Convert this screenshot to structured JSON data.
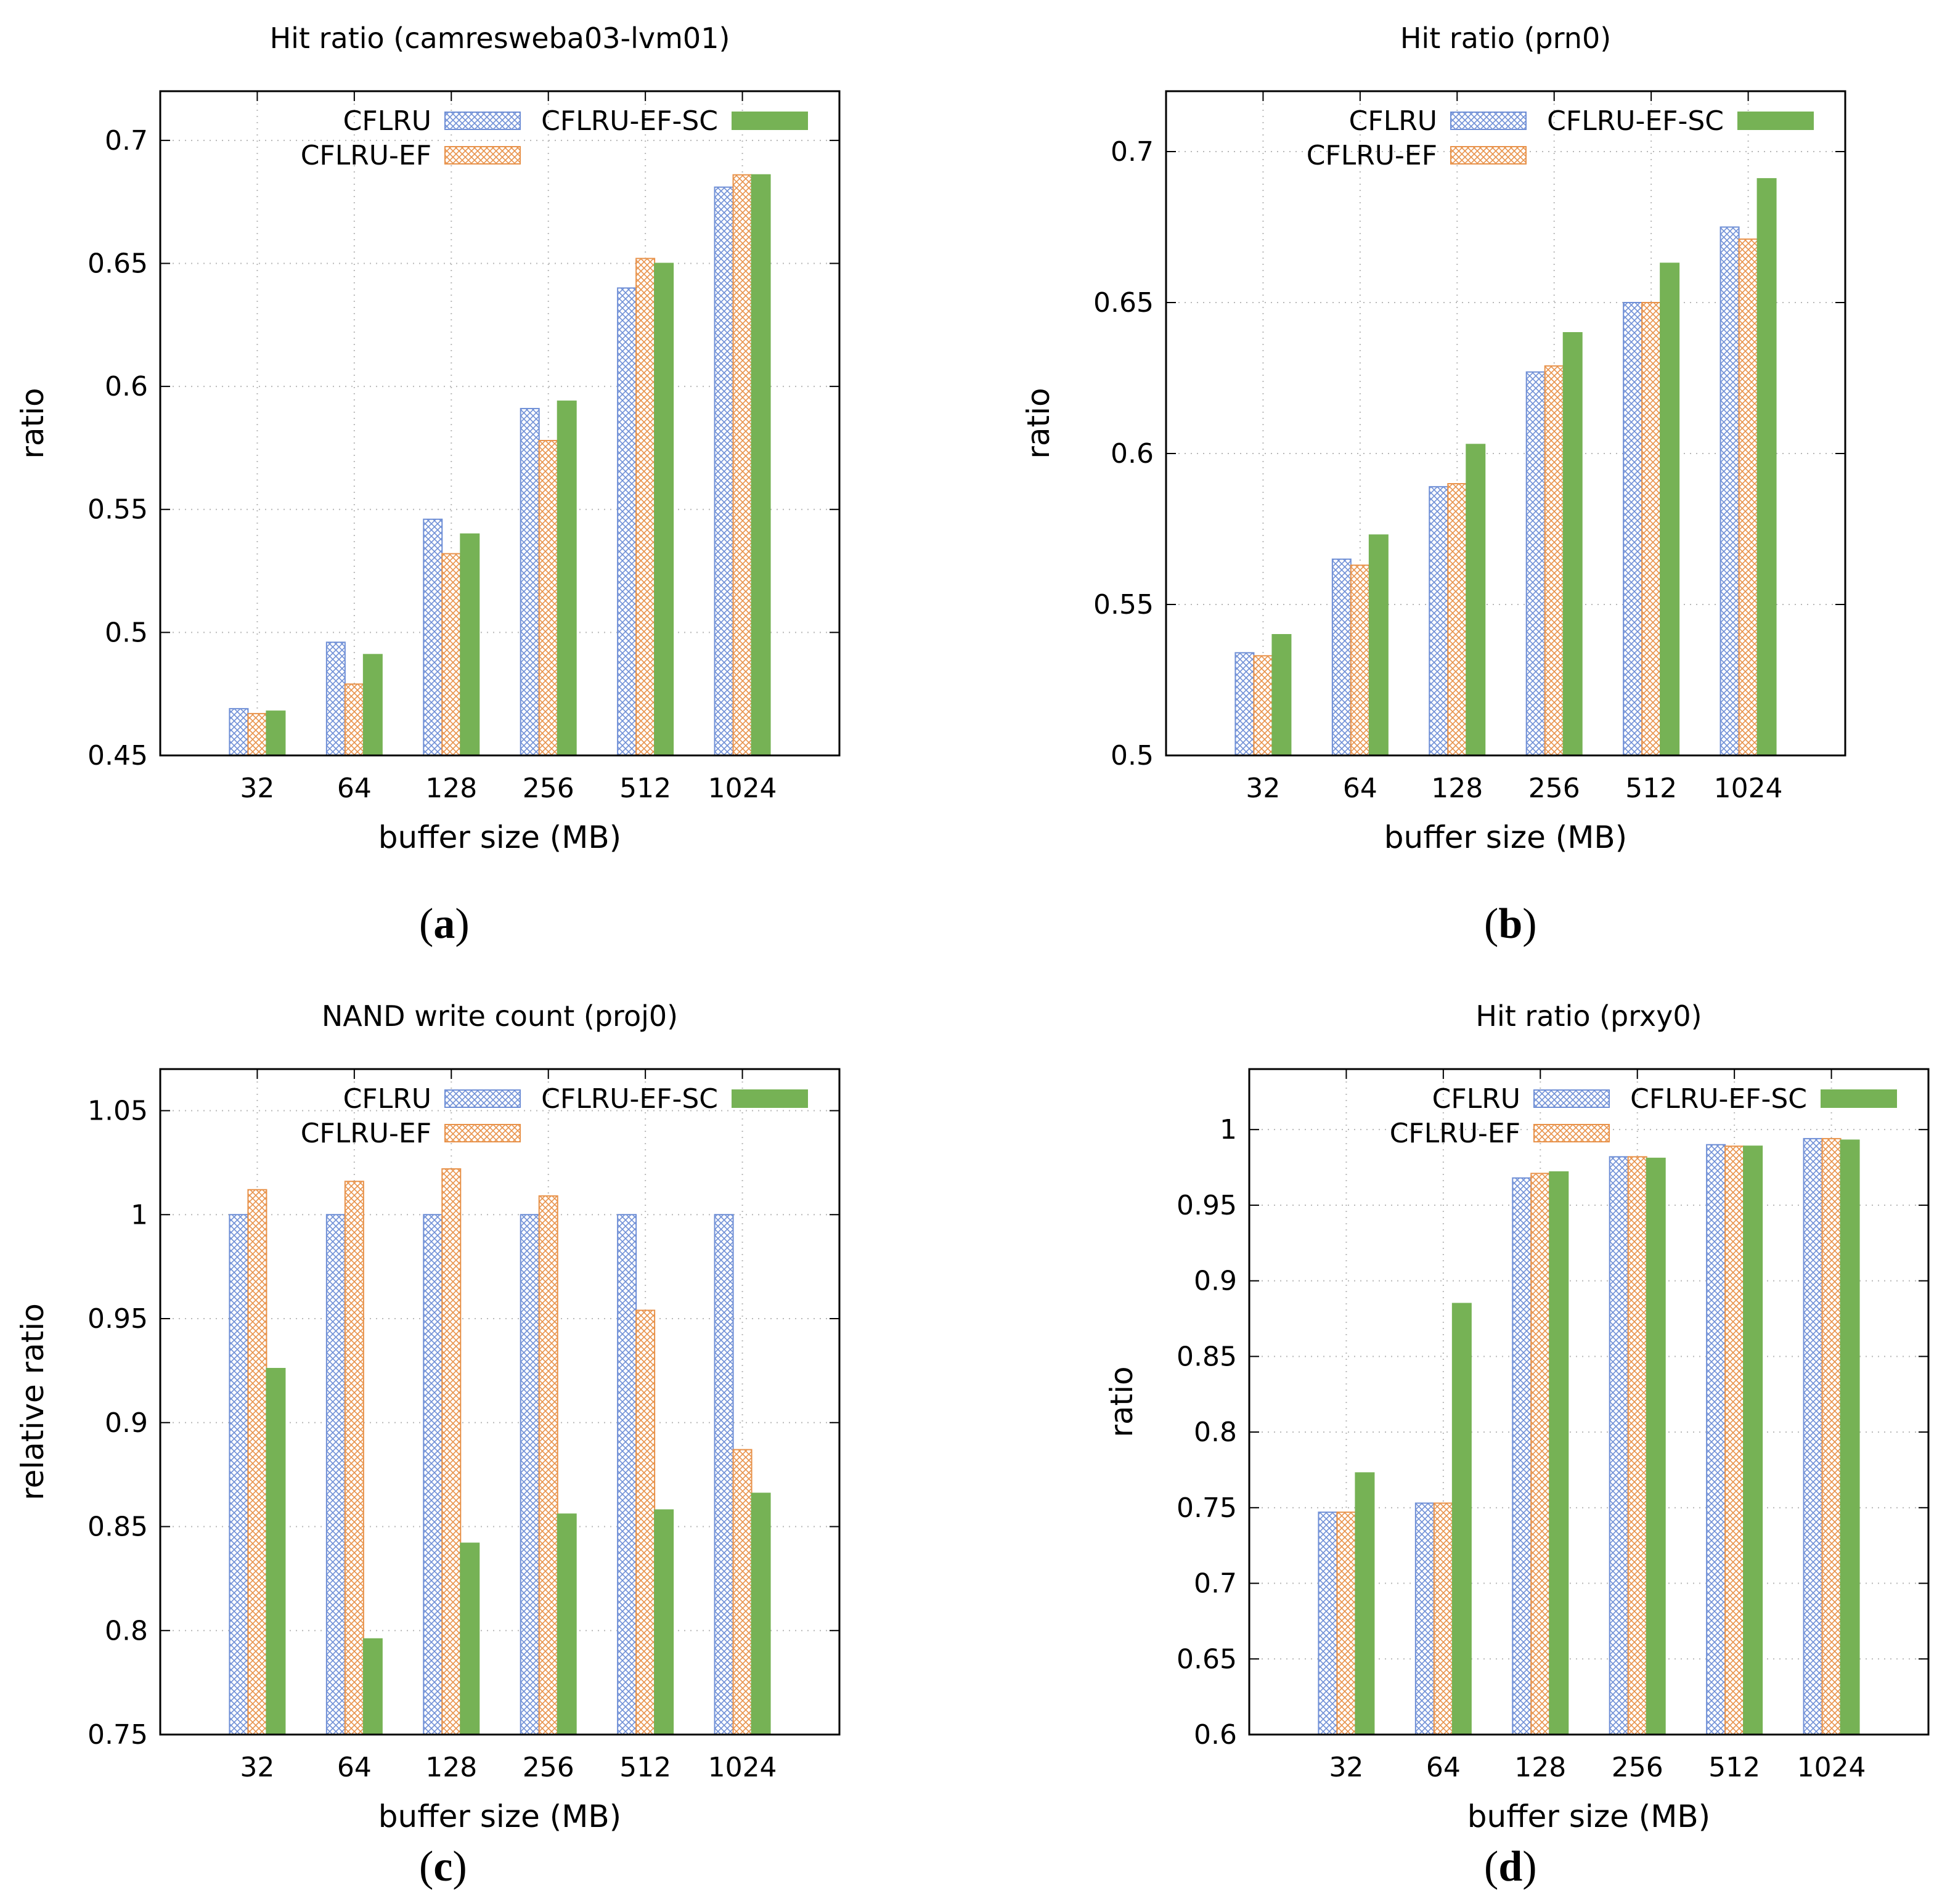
{
  "colors": {
    "CFLRU": "#6f8fd6",
    "CFLRU-EF": "#e8924a",
    "CFLRU-EF-SC": "#76b255",
    "grid": "#b8b8b8",
    "axis": "#000000"
  },
  "chart_data": [
    {
      "type": "bar",
      "title": "Hit ratio (camresweba03-lvm01)",
      "xlabel": "buffer size (MB)",
      "ylabel": "ratio",
      "caption": "a",
      "categories": [
        "32",
        "64",
        "128",
        "256",
        "512",
        "1024"
      ],
      "ylim": [
        0.45,
        0.72
      ],
      "yticks": [
        0.45,
        0.5,
        0.55,
        0.6,
        0.65,
        0.7
      ],
      "ytick_labels": [
        "0.45",
        "0.5",
        "0.55",
        "0.6",
        "0.65",
        "0.7"
      ],
      "grid": true,
      "legend_position": "top-right",
      "series": [
        {
          "name": "CFLRU",
          "values": [
            0.469,
            0.496,
            0.546,
            0.591,
            0.64,
            0.681
          ]
        },
        {
          "name": "CFLRU-EF",
          "values": [
            0.467,
            0.479,
            0.532,
            0.578,
            0.652,
            0.686
          ]
        },
        {
          "name": "CFLRU-EF-SC",
          "values": [
            0.468,
            0.491,
            0.54,
            0.594,
            0.65,
            0.686
          ]
        }
      ]
    },
    {
      "type": "bar",
      "title": "Hit ratio (prn0)",
      "xlabel": "buffer size (MB)",
      "ylabel": "ratio",
      "caption": "b",
      "categories": [
        "32",
        "64",
        "128",
        "256",
        "512",
        "1024"
      ],
      "ylim": [
        0.5,
        0.72
      ],
      "yticks": [
        0.5,
        0.55,
        0.6,
        0.65,
        0.7
      ],
      "ytick_labels": [
        "0.5",
        "0.55",
        "0.6",
        "0.65",
        "0.7"
      ],
      "grid": true,
      "legend_position": "top-right",
      "series": [
        {
          "name": "CFLRU",
          "values": [
            0.534,
            0.565,
            0.589,
            0.627,
            0.65,
            0.675
          ]
        },
        {
          "name": "CFLRU-EF",
          "values": [
            0.533,
            0.563,
            0.59,
            0.629,
            0.65,
            0.671
          ]
        },
        {
          "name": "CFLRU-EF-SC",
          "values": [
            0.54,
            0.573,
            0.603,
            0.64,
            0.663,
            0.691
          ]
        }
      ]
    },
    {
      "type": "bar",
      "title": "NAND write count (proj0)",
      "xlabel": "buffer size (MB)",
      "ylabel": "relative ratio",
      "caption": "c",
      "categories": [
        "32",
        "64",
        "128",
        "256",
        "512",
        "1024"
      ],
      "ylim": [
        0.75,
        1.07
      ],
      "yticks": [
        0.75,
        0.8,
        0.85,
        0.9,
        0.95,
        1.0,
        1.05
      ],
      "ytick_labels": [
        "0.75",
        "0.8",
        "0.85",
        "0.9",
        "0.95",
        "1",
        "1.05"
      ],
      "grid": true,
      "legend_position": "top-right",
      "series": [
        {
          "name": "CFLRU",
          "values": [
            1.0,
            1.0,
            1.0,
            1.0,
            1.0,
            1.0
          ]
        },
        {
          "name": "CFLRU-EF",
          "values": [
            1.012,
            1.016,
            1.022,
            1.009,
            0.954,
            0.887
          ]
        },
        {
          "name": "CFLRU-EF-SC",
          "values": [
            0.926,
            0.796,
            0.842,
            0.856,
            0.858,
            0.866
          ]
        }
      ]
    },
    {
      "type": "bar",
      "title": "Hit ratio (prxy0)",
      "xlabel": "buffer size (MB)",
      "ylabel": "ratio",
      "caption": "d",
      "categories": [
        "32",
        "64",
        "128",
        "256",
        "512",
        "1024"
      ],
      "ylim": [
        0.6,
        1.04
      ],
      "yticks": [
        0.6,
        0.65,
        0.7,
        0.75,
        0.8,
        0.85,
        0.9,
        0.95,
        1.0
      ],
      "ytick_labels": [
        "0.6",
        "0.65",
        "0.7",
        "0.75",
        "0.8",
        "0.85",
        "0.9",
        "0.95",
        "1"
      ],
      "grid": true,
      "legend_position": "top-right",
      "series": [
        {
          "name": "CFLRU",
          "values": [
            0.747,
            0.753,
            0.968,
            0.982,
            0.99,
            0.994
          ]
        },
        {
          "name": "CFLRU-EF",
          "values": [
            0.747,
            0.753,
            0.971,
            0.982,
            0.989,
            0.994
          ]
        },
        {
          "name": "CFLRU-EF-SC",
          "values": [
            0.773,
            0.885,
            0.972,
            0.981,
            0.989,
            0.993
          ]
        }
      ]
    }
  ]
}
